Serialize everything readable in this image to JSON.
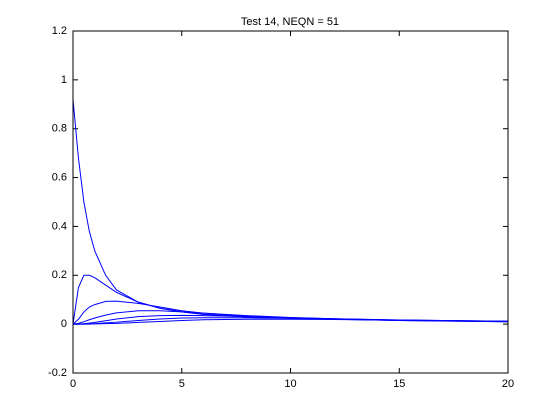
{
  "chart_data": {
    "type": "line",
    "title": "Test 14, NEQN = 51",
    "x": [
      0,
      0.25,
      0.5,
      0.75,
      1,
      1.5,
      2,
      3,
      4,
      5,
      6,
      8,
      10,
      12,
      15,
      20
    ],
    "series": [
      {
        "color": "#0000ff",
        "values": [
          0.92,
          0.68,
          0.5,
          0.38,
          0.3,
          0.2,
          0.14,
          0.09,
          0.065,
          0.05,
          0.04,
          0.03,
          0.024,
          0.02,
          0.015,
          0.01
        ]
      },
      {
        "color": "#0000ff",
        "values": [
          0,
          0.15,
          0.2,
          0.2,
          0.19,
          0.16,
          0.13,
          0.09,
          0.065,
          0.05,
          0.04,
          0.03,
          0.024,
          0.02,
          0.015,
          0.01
        ]
      },
      {
        "color": "#0000ff",
        "values": [
          0,
          0.02,
          0.05,
          0.07,
          0.08,
          0.093,
          0.094,
          0.085,
          0.07,
          0.055,
          0.045,
          0.033,
          0.026,
          0.021,
          0.016,
          0.011
        ]
      },
      {
        "color": "#0000ff",
        "values": [
          0,
          0.003,
          0.01,
          0.018,
          0.025,
          0.037,
          0.046,
          0.055,
          0.055,
          0.05,
          0.045,
          0.035,
          0.027,
          0.022,
          0.016,
          0.011
        ]
      },
      {
        "color": "#0000ff",
        "values": [
          0,
          0,
          0.002,
          0.004,
          0.007,
          0.014,
          0.021,
          0.031,
          0.035,
          0.036,
          0.035,
          0.031,
          0.026,
          0.022,
          0.017,
          0.012
        ]
      },
      {
        "color": "#0000ff",
        "values": [
          0,
          0,
          0,
          0.001,
          0.002,
          0.005,
          0.008,
          0.015,
          0.021,
          0.025,
          0.026,
          0.026,
          0.024,
          0.021,
          0.017,
          0.012
        ]
      },
      {
        "color": "#0000ff",
        "values": [
          0,
          0,
          0,
          0,
          0.001,
          0.002,
          0.003,
          0.007,
          0.011,
          0.015,
          0.018,
          0.02,
          0.02,
          0.019,
          0.016,
          0.012
        ]
      }
    ],
    "xlim": [
      0,
      20
    ],
    "xticks": [
      0,
      5,
      10,
      15,
      20
    ],
    "ylim": [
      -0.2,
      1.2
    ],
    "yticks": [
      -0.2,
      0,
      0.2,
      0.4,
      0.6,
      0.8,
      1,
      1.2
    ],
    "grid": false
  }
}
